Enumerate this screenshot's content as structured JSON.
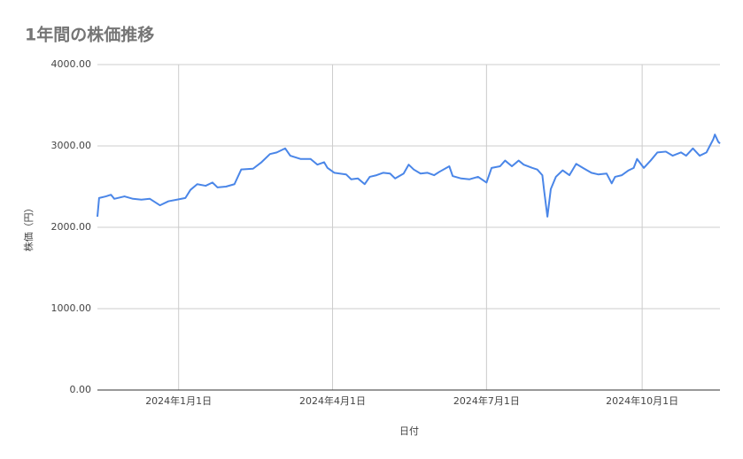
{
  "chart_data": {
    "type": "line",
    "title": "1年間の株価推移",
    "x_label": "日付",
    "y_label": "株価（円）",
    "x": [
      "2023-11-14",
      "2023-11-15",
      "2023-11-19",
      "2023-11-22",
      "2023-11-24",
      "2023-11-30",
      "2023-12-05",
      "2023-12-10",
      "2023-12-15",
      "2023-12-21",
      "2023-12-26",
      "2023-12-31",
      "2024-01-05",
      "2024-01-08",
      "2024-01-12",
      "2024-01-17",
      "2024-01-21",
      "2024-01-24",
      "2024-01-29",
      "2024-02-03",
      "2024-02-07",
      "2024-02-14",
      "2024-02-19",
      "2024-02-24",
      "2024-02-28",
      "2024-03-04",
      "2024-03-07",
      "2024-03-13",
      "2024-03-19",
      "2024-03-23",
      "2024-03-27",
      "2024-03-29",
      "2024-04-02",
      "2024-04-09",
      "2024-04-12",
      "2024-04-16",
      "2024-04-20",
      "2024-04-23",
      "2024-04-27",
      "2024-05-01",
      "2024-05-05",
      "2024-05-08",
      "2024-05-13",
      "2024-05-16",
      "2024-05-19",
      "2024-05-23",
      "2024-05-27",
      "2024-05-31",
      "2024-06-03",
      "2024-06-09",
      "2024-06-11",
      "2024-06-16",
      "2024-06-21",
      "2024-06-26",
      "2024-07-01",
      "2024-07-04",
      "2024-07-09",
      "2024-07-12",
      "2024-07-16",
      "2024-07-20",
      "2024-07-23",
      "2024-07-28",
      "2024-07-31",
      "2024-08-03",
      "2024-08-04",
      "2024-08-06",
      "2024-08-08",
      "2024-08-11",
      "2024-08-15",
      "2024-08-19",
      "2024-08-23",
      "2024-08-27",
      "2024-09-01",
      "2024-09-05",
      "2024-09-10",
      "2024-09-13",
      "2024-09-15",
      "2024-09-19",
      "2024-09-23",
      "2024-09-26",
      "2024-09-28",
      "2024-10-02",
      "2024-10-06",
      "2024-10-10",
      "2024-10-15",
      "2024-10-19",
      "2024-10-24",
      "2024-10-27",
      "2024-10-31",
      "2024-11-04",
      "2024-11-08",
      "2024-11-12",
      "2024-11-13",
      "2024-11-15",
      "2024-11-16"
    ],
    "series": [
      {
        "name": "株価",
        "color": "#4a86e8",
        "values": [
          2130,
          2360,
          2380,
          2400,
          2350,
          2380,
          2350,
          2340,
          2350,
          2270,
          2320,
          2340,
          2360,
          2460,
          2530,
          2510,
          2550,
          2490,
          2500,
          2530,
          2710,
          2720,
          2800,
          2900,
          2920,
          2970,
          2880,
          2840,
          2840,
          2770,
          2800,
          2730,
          2670,
          2650,
          2590,
          2600,
          2530,
          2620,
          2640,
          2670,
          2660,
          2600,
          2660,
          2770,
          2710,
          2660,
          2670,
          2640,
          2680,
          2750,
          2630,
          2600,
          2590,
          2620,
          2550,
          2730,
          2750,
          2820,
          2750,
          2820,
          2770,
          2730,
          2710,
          2640,
          2460,
          2130,
          2470,
          2620,
          2700,
          2640,
          2780,
          2730,
          2670,
          2650,
          2660,
          2540,
          2620,
          2640,
          2700,
          2730,
          2840,
          2730,
          2820,
          2920,
          2930,
          2880,
          2920,
          2880,
          2970,
          2880,
          2920,
          3080,
          3140,
          3050,
          3030
        ]
      }
    ],
    "xlim": [
      "2023-11-14",
      "2024-11-16"
    ],
    "xticks": [
      {
        "value": "2024-01-01",
        "label": "2024年1月1日"
      },
      {
        "value": "2024-04-01",
        "label": "2024年4月1日"
      },
      {
        "value": "2024-07-01",
        "label": "2024年7月1日"
      },
      {
        "value": "2024-10-01",
        "label": "2024年10月1日"
      }
    ],
    "ylim": [
      0,
      4000
    ],
    "yticks": [
      {
        "value": 0,
        "label": "0.00"
      },
      {
        "value": 1000,
        "label": "1000.00"
      },
      {
        "value": 2000,
        "label": "2000.00"
      },
      {
        "value": 3000,
        "label": "3000.00"
      },
      {
        "value": 4000,
        "label": "4000.00"
      }
    ],
    "grid": true
  }
}
